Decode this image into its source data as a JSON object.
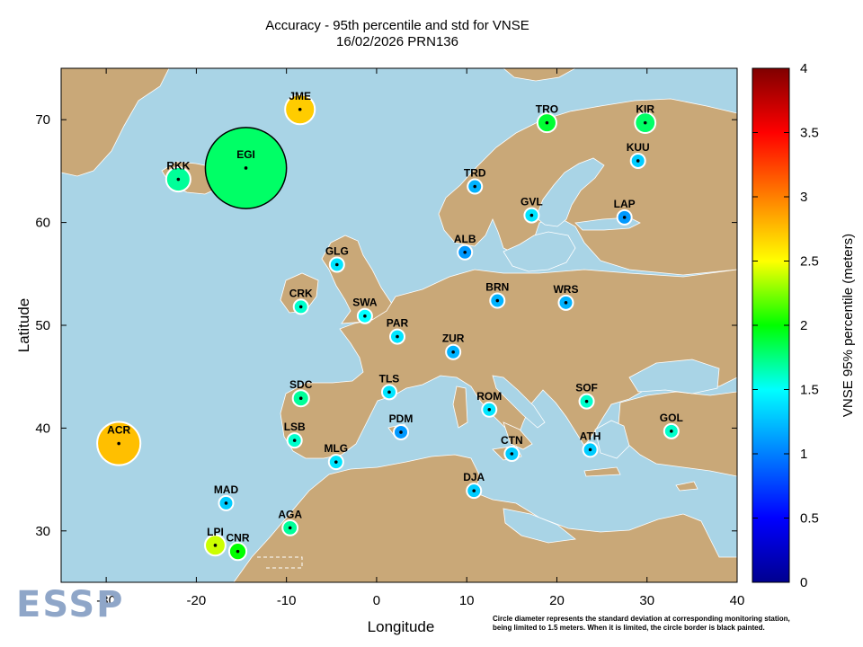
{
  "title_line1": "Accuracy - 95th percentile and std for VNSE",
  "title_line2": "16/02/2026 PRN136",
  "xlabel": "Longitude",
  "ylabel": "Latitude",
  "colorbar_label": "VNSE 95% percentile (meters)",
  "logo_text": "ESSP",
  "footnote_line1": "Circle diameter represents the standard deviation at corresponding monitoring station,",
  "footnote_line2": "being limited to 1.5 meters. When it is limited, the circle border is black painted.",
  "colors": {
    "sea": "#a9d4e6",
    "land": "#c9a878",
    "coast": "#ffffff"
  },
  "chart_data": {
    "type": "scatter",
    "xlim": [
      -35,
      40
    ],
    "ylim": [
      25,
      75
    ],
    "xticks": [
      -30,
      -20,
      -10,
      0,
      10,
      20,
      30,
      40
    ],
    "yticks": [
      30,
      40,
      50,
      60,
      70
    ],
    "xtick_labels": [
      "-30",
      "-20",
      "-10",
      "0",
      "10",
      "20",
      "30",
      "40"
    ],
    "ytick_labels": [
      "30",
      "40",
      "50",
      "60",
      "70"
    ],
    "colorbar": {
      "min": 0,
      "max": 4,
      "ticks": [
        0,
        0.5,
        1,
        1.5,
        2,
        2.5,
        3,
        3.5,
        4
      ],
      "tick_labels": [
        "0",
        "0.5",
        "1",
        "1.5",
        "2",
        "2.5",
        "3",
        "3.5",
        "4"
      ]
    },
    "stations": [
      {
        "name": "JME",
        "lon": -8.5,
        "lat": 71.0,
        "p95": 2.7,
        "std": 0.55,
        "limited": false
      },
      {
        "name": "EGI",
        "lon": -14.5,
        "lat": 65.3,
        "p95": 1.8,
        "std": 1.5,
        "limited": true
      },
      {
        "name": "RKK",
        "lon": -22.0,
        "lat": 64.2,
        "p95": 1.7,
        "std": 0.45,
        "limited": false
      },
      {
        "name": "TRO",
        "lon": 18.9,
        "lat": 69.7,
        "p95": 1.9,
        "std": 0.35,
        "limited": false
      },
      {
        "name": "KIR",
        "lon": 29.8,
        "lat": 69.7,
        "p95": 1.8,
        "std": 0.38,
        "limited": false
      },
      {
        "name": "KUU",
        "lon": 29.0,
        "lat": 66.0,
        "p95": 1.3,
        "std": 0.22,
        "limited": false
      },
      {
        "name": "TRD",
        "lon": 10.9,
        "lat": 63.5,
        "p95": 1.2,
        "std": 0.2,
        "limited": false
      },
      {
        "name": "GVL",
        "lon": 17.2,
        "lat": 60.7,
        "p95": 1.4,
        "std": 0.2,
        "limited": false
      },
      {
        "name": "LAP",
        "lon": 27.5,
        "lat": 60.5,
        "p95": 1.1,
        "std": 0.18,
        "limited": false
      },
      {
        "name": "ALB",
        "lon": 9.8,
        "lat": 57.1,
        "p95": 1.1,
        "std": 0.15,
        "limited": false
      },
      {
        "name": "GLG",
        "lon": -4.4,
        "lat": 55.9,
        "p95": 1.4,
        "std": 0.2,
        "limited": false
      },
      {
        "name": "BRN",
        "lon": 13.4,
        "lat": 52.4,
        "p95": 1.2,
        "std": 0.18,
        "limited": false
      },
      {
        "name": "WRS",
        "lon": 21.0,
        "lat": 52.2,
        "p95": 1.2,
        "std": 0.18,
        "limited": false
      },
      {
        "name": "CRK",
        "lon": -8.4,
        "lat": 51.8,
        "p95": 1.6,
        "std": 0.25,
        "limited": false
      },
      {
        "name": "SWA",
        "lon": -1.3,
        "lat": 50.9,
        "p95": 1.5,
        "std": 0.22,
        "limited": false
      },
      {
        "name": "PAR",
        "lon": 2.3,
        "lat": 48.9,
        "p95": 1.4,
        "std": 0.22,
        "limited": false
      },
      {
        "name": "ZUR",
        "lon": 8.5,
        "lat": 47.4,
        "p95": 1.2,
        "std": 0.18,
        "limited": false
      },
      {
        "name": "TLS",
        "lon": 1.4,
        "lat": 43.5,
        "p95": 1.4,
        "std": 0.2,
        "limited": false
      },
      {
        "name": "SDC",
        "lon": -8.4,
        "lat": 42.9,
        "p95": 1.7,
        "std": 0.3,
        "limited": false
      },
      {
        "name": "ROM",
        "lon": 12.5,
        "lat": 41.8,
        "p95": 1.4,
        "std": 0.2,
        "limited": false
      },
      {
        "name": "SOF",
        "lon": 23.3,
        "lat": 42.6,
        "p95": 1.6,
        "std": 0.22,
        "limited": false
      },
      {
        "name": "GOL",
        "lon": 32.7,
        "lat": 39.7,
        "p95": 1.6,
        "std": 0.25,
        "limited": false
      },
      {
        "name": "PDM",
        "lon": 2.7,
        "lat": 39.6,
        "p95": 1.1,
        "std": 0.17,
        "limited": false
      },
      {
        "name": "LSB",
        "lon": -9.1,
        "lat": 38.8,
        "p95": 1.6,
        "std": 0.25,
        "limited": false
      },
      {
        "name": "ACR",
        "lon": -28.6,
        "lat": 38.5,
        "p95": 2.75,
        "std": 0.8,
        "limited": false
      },
      {
        "name": "ATH",
        "lon": 23.7,
        "lat": 37.9,
        "p95": 1.3,
        "std": 0.18,
        "limited": false
      },
      {
        "name": "CTN",
        "lon": 15.0,
        "lat": 37.5,
        "p95": 1.3,
        "std": 0.18,
        "limited": false
      },
      {
        "name": "MLG",
        "lon": -4.5,
        "lat": 36.7,
        "p95": 1.4,
        "std": 0.2,
        "limited": false
      },
      {
        "name": "DJA",
        "lon": 10.8,
        "lat": 33.9,
        "p95": 1.3,
        "std": 0.18,
        "limited": false
      },
      {
        "name": "MAD",
        "lon": -16.7,
        "lat": 32.7,
        "p95": 1.3,
        "std": 0.18,
        "limited": false
      },
      {
        "name": "AGA",
        "lon": -9.6,
        "lat": 30.3,
        "p95": 1.7,
        "std": 0.28,
        "limited": false
      },
      {
        "name": "LPI",
        "lon": -17.9,
        "lat": 28.6,
        "p95": 2.4,
        "std": 0.38,
        "limited": false
      },
      {
        "name": "CNR",
        "lon": -15.4,
        "lat": 28.0,
        "p95": 2.0,
        "std": 0.32,
        "limited": false
      }
    ]
  }
}
